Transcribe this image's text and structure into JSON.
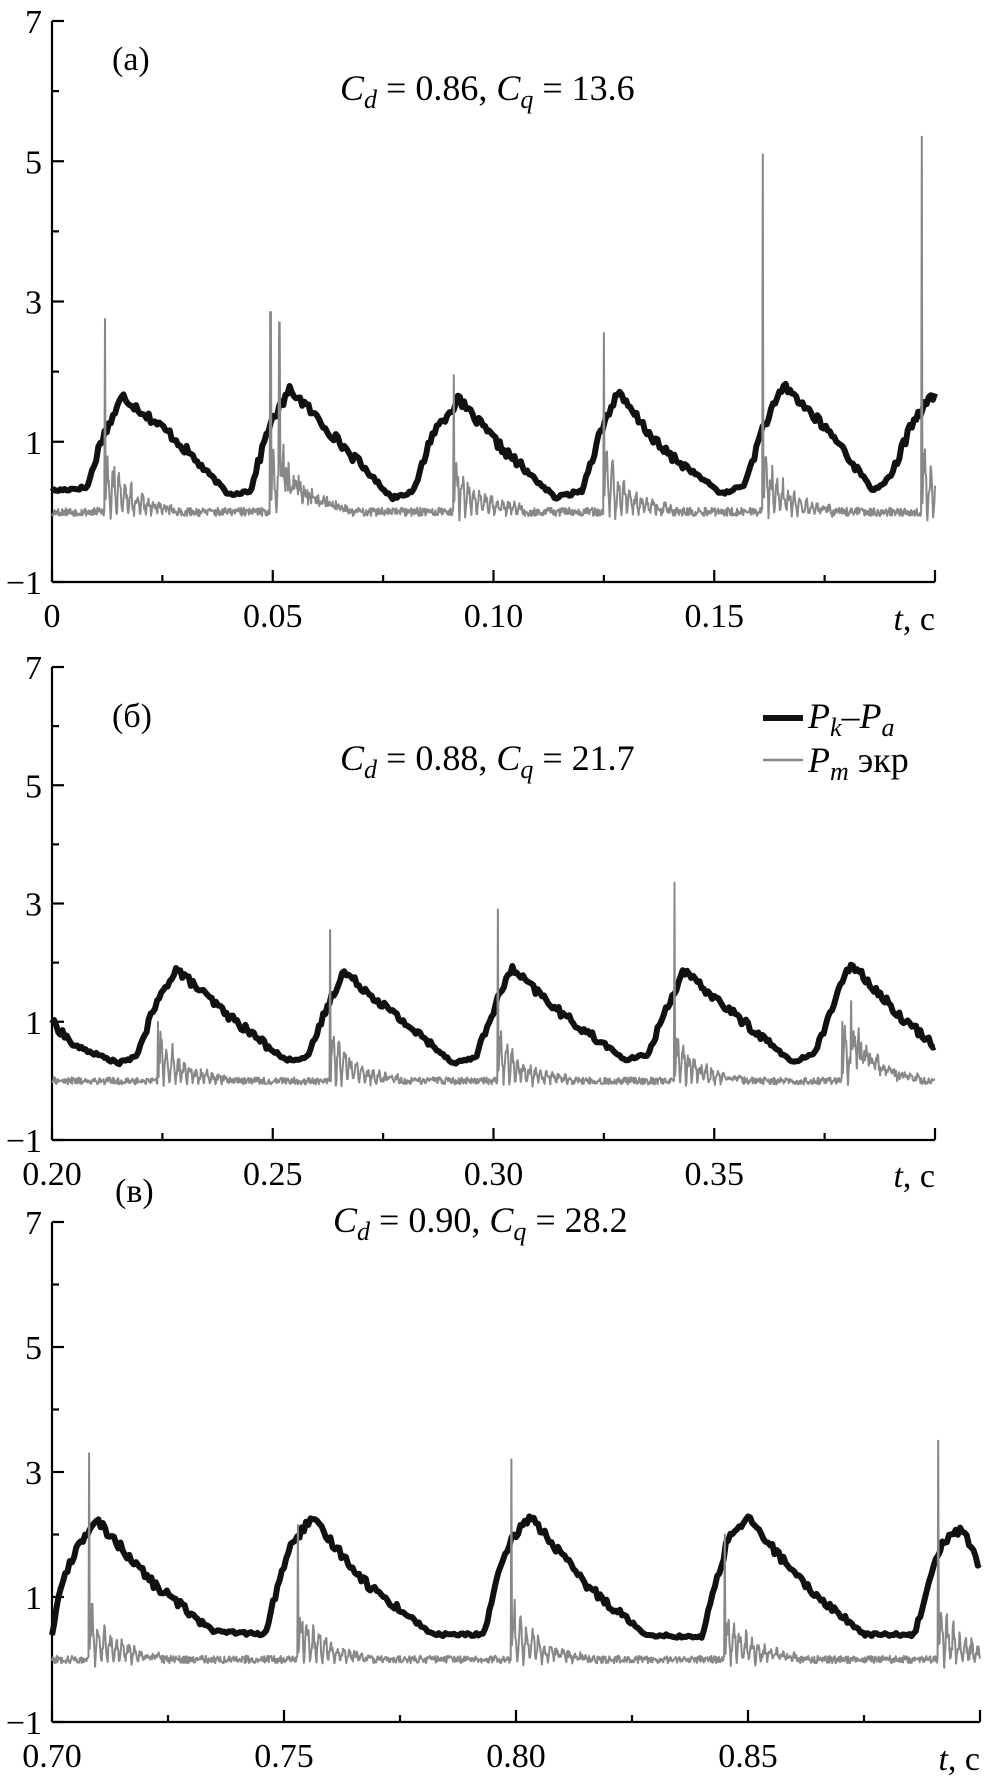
{
  "figure": {
    "colors": {
      "pressure_chamber": "#111111",
      "pressure_screen": "#888888"
    },
    "legend": {
      "entries": [
        {
          "symbol": "P",
          "sub": "k",
          "sep": "–",
          "symbol2": "P",
          "sub2": "a",
          "suffix": ""
        },
        {
          "symbol": "P",
          "sub": "m",
          "sep": "",
          "symbol2": "",
          "sub2": "",
          "suffix": " экр"
        }
      ]
    }
  },
  "chart_data": [
    {
      "type": "line",
      "panel": "(a)",
      "params": {
        "cd_symbol": "C",
        "cd_sub": "d",
        "cd_value": " = 0.86, ",
        "cq_symbol": "C",
        "cq_sub": "q",
        "cq_value": " = 13.6"
      },
      "xlim": [
        0,
        0.2
      ],
      "ylim": [
        -1,
        7
      ],
      "x_ticks": [
        0,
        0.05,
        0.1,
        0.15
      ],
      "x_tick_labels": [
        "0",
        "0.05",
        "0.10",
        "0.15"
      ],
      "y_ticks": [
        -1,
        1,
        3,
        5,
        7
      ],
      "y_tick_labels": [
        "−1",
        "1",
        "3",
        "5",
        "7"
      ],
      "xlabel": {
        "var": "t",
        "unit": ", с"
      },
      "period": 0.037,
      "first_rise": 0.012,
      "pulse_peaks": [
        1.65,
        1.75,
        1.6,
        1.7,
        1.8,
        1.7
      ],
      "baseline": 0.22,
      "series": [
        {
          "name": "Pk–Pa",
          "x": [
            0,
            0.008,
            0.011,
            0.016,
            0.027,
            0.04,
            0.045,
            0.049,
            0.054,
            0.065,
            0.077,
            0.082,
            0.086,
            0.092,
            0.102,
            0.114,
            0.12,
            0.124,
            0.128,
            0.138,
            0.152,
            0.157,
            0.161,
            0.166,
            0.178,
            0.186,
            0.19,
            0.195,
            0.2
          ],
          "values": [
            0.3,
            0.35,
            1.0,
            1.65,
            1.1,
            0.25,
            0.3,
            1.2,
            1.75,
            1.0,
            0.2,
            0.3,
            1.1,
            1.6,
            0.9,
            0.2,
            0.3,
            1.1,
            1.7,
            0.9,
            0.25,
            0.4,
            1.2,
            1.8,
            1.0,
            0.3,
            0.5,
            1.3,
            1.7
          ]
        },
        {
          "name": "Pm экр",
          "spike_times": [
            0.012,
            0.0495,
            0.0515,
            0.091,
            0.125,
            0.161,
            0.197
          ],
          "spike_peaks": [
            2.75,
            2.85,
            2.7,
            1.95,
            2.55,
            5.1,
            5.35
          ],
          "baseline": 0.0
        }
      ]
    },
    {
      "type": "line",
      "panel": "(б)",
      "params": {
        "cd_symbol": "C",
        "cd_sub": "d",
        "cd_value": " = 0.88, ",
        "cq_symbol": "C",
        "cq_sub": "q",
        "cq_value": " = 21.7"
      },
      "xlim": [
        0.2,
        0.4
      ],
      "ylim": [
        -1,
        7
      ],
      "x_ticks": [
        0.2,
        0.25,
        0.3,
        0.35
      ],
      "x_tick_labels": [
        "0.20",
        "0.25",
        "0.30",
        "0.35"
      ],
      "y_ticks": [
        -1,
        1,
        3,
        5,
        7
      ],
      "y_tick_labels": [
        "−1",
        "1",
        "3",
        "5",
        "7"
      ],
      "xlabel": {
        "var": "t",
        "unit": ", с"
      },
      "series": [
        {
          "name": "Pk–Pa",
          "x": [
            0.2,
            0.205,
            0.215,
            0.219,
            0.223,
            0.228,
            0.24,
            0.253,
            0.258,
            0.262,
            0.266,
            0.278,
            0.291,
            0.296,
            0.3,
            0.304,
            0.316,
            0.33,
            0.335,
            0.339,
            0.343,
            0.355,
            0.368,
            0.373,
            0.377,
            0.381,
            0.392,
            0.4
          ],
          "values": [
            1.0,
            0.6,
            0.3,
            0.4,
            1.2,
            1.9,
            1.1,
            0.35,
            0.4,
            1.2,
            1.85,
            1.1,
            0.3,
            0.4,
            1.2,
            1.9,
            1.1,
            0.35,
            0.45,
            1.2,
            1.85,
            1.1,
            0.3,
            0.5,
            1.3,
            2.0,
            1.1,
            0.6
          ]
        },
        {
          "name": "Pm экр",
          "spike_times": [
            0.224,
            0.263,
            0.301,
            0.341,
            0.379,
            0.381
          ],
          "spike_peaks": [
            1.0,
            2.55,
            2.9,
            3.35,
            1.0,
            1.35
          ],
          "baseline": 0.0
        }
      ]
    },
    {
      "type": "line",
      "panel": "(в)",
      "params": {
        "cd_symbol": "C",
        "cd_sub": "d",
        "cd_value": " = 0.90, ",
        "cq_symbol": "C",
        "cq_sub": "q",
        "cq_value": " = 28.2"
      },
      "xlim": [
        0.7,
        0.9
      ],
      "ylim": [
        -1,
        7
      ],
      "x_ticks": [
        0.7,
        0.75,
        0.8,
        0.85
      ],
      "x_tick_labels": [
        "0.70",
        "0.75",
        "0.80",
        "0.85"
      ],
      "y_ticks": [
        -1,
        1,
        3,
        5,
        7
      ],
      "y_tick_labels": [
        "−1",
        "1",
        "3",
        "5",
        "7"
      ],
      "xlabel": {
        "var": "t",
        "unit": ", с"
      },
      "series": [
        {
          "name": "Pk–Pa",
          "x": [
            0.7,
            0.702,
            0.706,
            0.71,
            0.722,
            0.735,
            0.746,
            0.749,
            0.752,
            0.756,
            0.768,
            0.782,
            0.793,
            0.796,
            0.799,
            0.803,
            0.815,
            0.828,
            0.84,
            0.843,
            0.846,
            0.85,
            0.862,
            0.875,
            0.886,
            0.889,
            0.892,
            0.896,
            0.9
          ],
          "values": [
            0.4,
            1.2,
            1.9,
            2.2,
            1.2,
            0.45,
            0.4,
            1.3,
            1.9,
            2.25,
            1.2,
            0.4,
            0.4,
            1.3,
            1.9,
            2.3,
            1.2,
            0.4,
            0.35,
            1.2,
            2.0,
            2.25,
            1.2,
            0.4,
            0.4,
            1.3,
            1.9,
            2.1,
            1.5
          ]
        },
        {
          "name": "Pm экр",
          "spike_times": [
            0.708,
            0.753,
            0.799,
            0.845,
            0.891
          ],
          "spike_peaks": [
            3.3,
            2.15,
            3.2,
            2.0,
            3.5
          ],
          "baseline": 0.0
        }
      ]
    }
  ]
}
